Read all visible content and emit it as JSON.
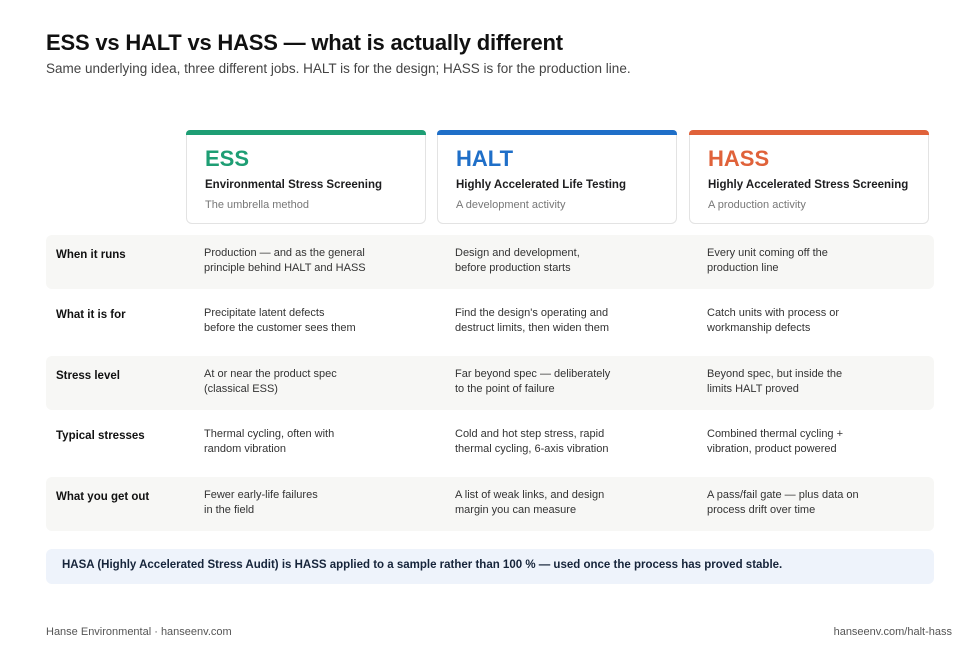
{
  "header": {
    "title": "ESS vs HALT vs HASS — what is actually different",
    "subtitle": "Same underlying idea, three different jobs. HALT is for the design; HASS is for the production line."
  },
  "columns": [
    {
      "short": "ESS",
      "full": "Environmental Stress Screening",
      "role": "The umbrella method",
      "color": "#1e9e74"
    },
    {
      "short": "HALT",
      "full": "Highly Accelerated Life Testing",
      "role": "A development activity",
      "color": "#1f6fc8"
    },
    {
      "short": "HASS",
      "full": "Highly Accelerated Stress Screening",
      "role": "A production activity",
      "color": "#e0623a"
    }
  ],
  "rows": [
    {
      "label": "When it runs",
      "cells": [
        "Production — and as the general\nprinciple behind HALT and HASS",
        "Design and development,\nbefore production starts",
        "Every unit coming off the\nproduction line"
      ]
    },
    {
      "label": "What it is for",
      "cells": [
        "Precipitate latent defects\nbefore the customer sees them",
        "Find the design's operating and\ndestruct limits, then widen them",
        "Catch units with process or\nworkmanship defects"
      ]
    },
    {
      "label": "Stress level",
      "cells": [
        "At or near the product spec\n(classical ESS)",
        "Far beyond spec — deliberately\nto the point of failure",
        "Beyond spec, but inside the\nlimits HALT proved"
      ]
    },
    {
      "label": "Typical stresses",
      "cells": [
        "Thermal cycling, often with\nrandom vibration",
        "Cold and hot step stress, rapid\nthermal cycling, 6-axis vibration",
        "Combined thermal cycling +\nvibration, product powered"
      ]
    },
    {
      "label": "What you get out",
      "cells": [
        "Fewer early-life failures\nin the field",
        "A list of weak links, and design\nmargin you can measure",
        "A pass/fail gate — plus data on\nprocess drift over time"
      ]
    }
  ],
  "note": "HASA (Highly Accelerated Stress Audit) is HASS applied to a sample rather than 100 % — used once the process has proved stable.",
  "footer": {
    "left": "Hanse Environmental · hanseenv.com",
    "right": "hanseenv.com/halt-hass"
  }
}
